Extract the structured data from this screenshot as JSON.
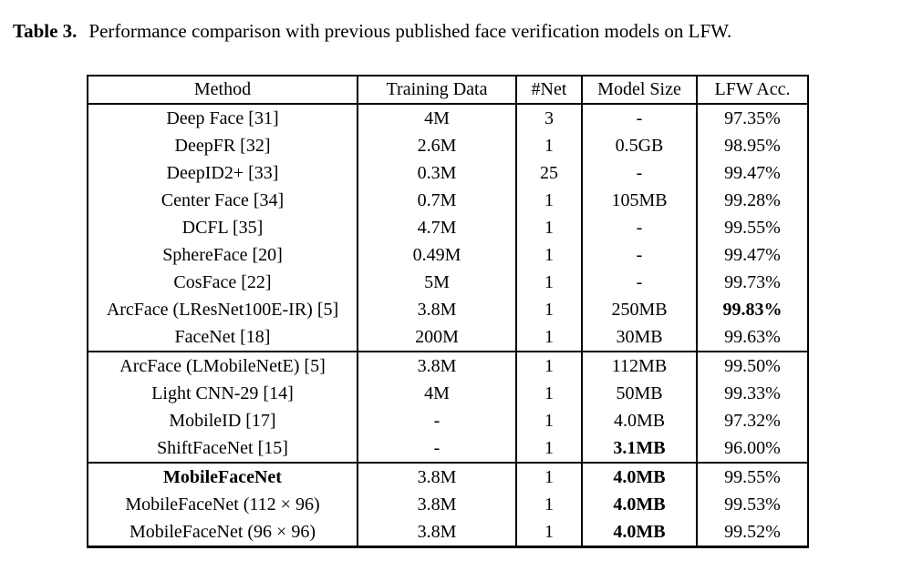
{
  "caption": {
    "label": "Table 3.",
    "text": "Performance comparison with previous published face verification models on LFW."
  },
  "table": {
    "columns": [
      "Method",
      "Training Data",
      "#Net",
      "Model Size",
      "LFW Acc."
    ],
    "sections": [
      {
        "rows": [
          {
            "cells": [
              "Deep Face [31]",
              "4M",
              "3",
              "-",
              "97.35%"
            ],
            "bold": []
          },
          {
            "cells": [
              "DeepFR [32]",
              "2.6M",
              "1",
              "0.5GB",
              "98.95%"
            ],
            "bold": []
          },
          {
            "cells": [
              "DeepID2+ [33]",
              "0.3M",
              "25",
              "-",
              "99.47%"
            ],
            "bold": []
          },
          {
            "cells": [
              "Center Face [34]",
              "0.7M",
              "1",
              "105MB",
              "99.28%"
            ],
            "bold": []
          },
          {
            "cells": [
              "DCFL [35]",
              "4.7M",
              "1",
              "-",
              "99.55%"
            ],
            "bold": []
          },
          {
            "cells": [
              "SphereFace [20]",
              "0.49M",
              "1",
              "-",
              "99.47%"
            ],
            "bold": []
          },
          {
            "cells": [
              "CosFace [22]",
              "5M",
              "1",
              "-",
              "99.73%"
            ],
            "bold": []
          },
          {
            "cells": [
              "ArcFace (LResNet100E-IR) [5]",
              "3.8M",
              "1",
              "250MB",
              "99.83%"
            ],
            "bold": [
              4
            ]
          },
          {
            "cells": [
              "FaceNet [18]",
              "200M",
              "1",
              "30MB",
              "99.63%"
            ],
            "bold": []
          }
        ]
      },
      {
        "rows": [
          {
            "cells": [
              "ArcFace (LMobileNetE) [5]",
              "3.8M",
              "1",
              "112MB",
              "99.50%"
            ],
            "bold": []
          },
          {
            "cells": [
              "Light CNN-29 [14]",
              "4M",
              "1",
              "50MB",
              "99.33%"
            ],
            "bold": []
          },
          {
            "cells": [
              "MobileID [17]",
              "-",
              "1",
              "4.0MB",
              "97.32%"
            ],
            "bold": []
          },
          {
            "cells": [
              "ShiftFaceNet [15]",
              "-",
              "1",
              "3.1MB",
              "96.00%"
            ],
            "bold": [
              3
            ]
          }
        ]
      },
      {
        "rows": [
          {
            "cells": [
              "MobileFaceNet",
              "3.8M",
              "1",
              "4.0MB",
              "99.55%"
            ],
            "bold": [
              0,
              3
            ]
          },
          {
            "cells": [
              "MobileFaceNet (112 × 96)",
              "3.8M",
              "1",
              "4.0MB",
              "99.53%"
            ],
            "bold": [
              3
            ]
          },
          {
            "cells": [
              "MobileFaceNet (96 × 96)",
              "3.8M",
              "1",
              "4.0MB",
              "99.52%"
            ],
            "bold": [
              3
            ]
          }
        ]
      }
    ]
  }
}
